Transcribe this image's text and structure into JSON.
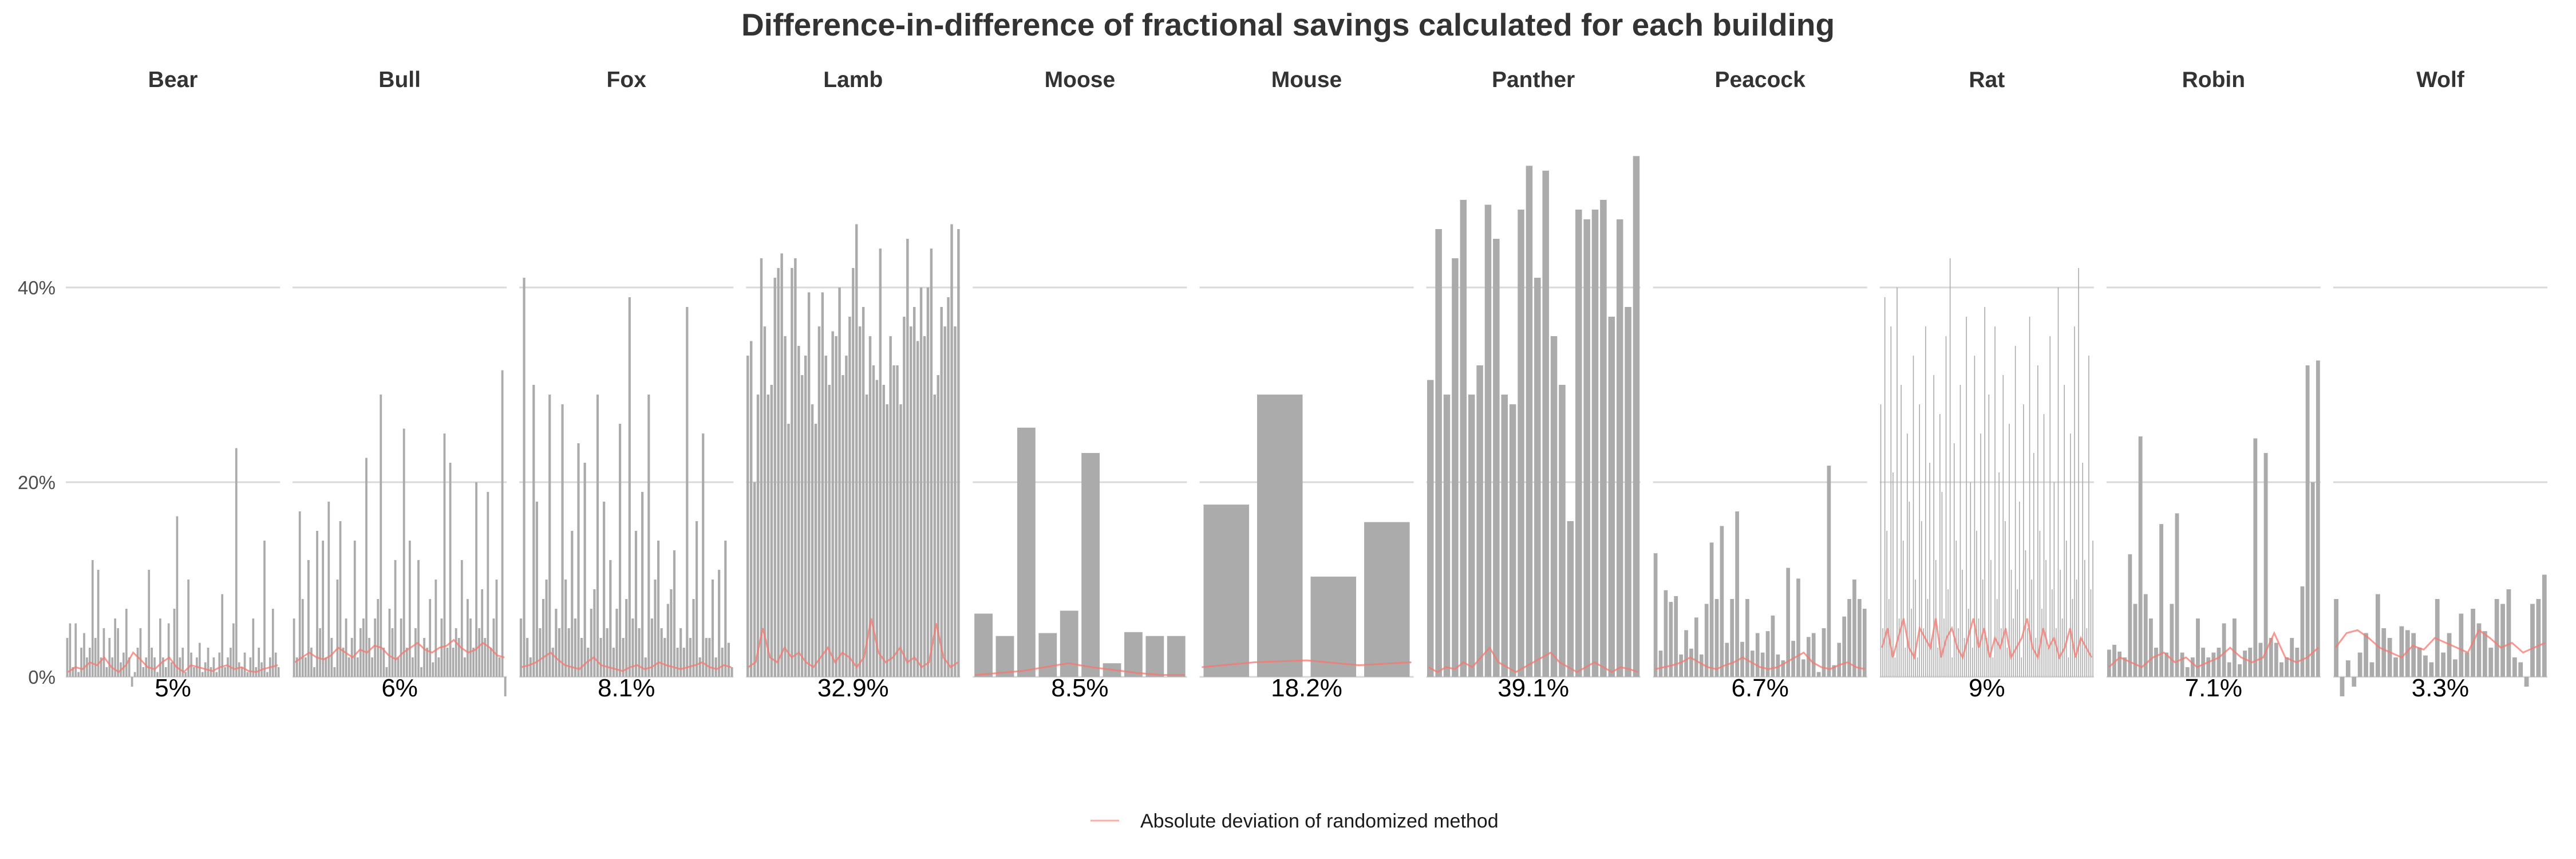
{
  "chart_data": {
    "type": "bar",
    "title": "Difference-in-difference of fractional savings calculated for each building",
    "ylim": [
      -0.02,
      0.55
    ],
    "y_ticks": [
      0,
      0.2,
      0.4
    ],
    "y_tick_labels": [
      "0%",
      "20%",
      "40%"
    ],
    "grid": "horizontal",
    "legend_position": "bottom",
    "bar_color": "#ABABAB",
    "line_color": "#F8766D",
    "series": [
      {
        "name": "",
        "kind": "bar"
      },
      {
        "name": "Absolute deviation of randomized method",
        "kind": "line"
      }
    ],
    "facets": [
      {
        "name": "Bear",
        "label": "5%",
        "bar_width": 0.75,
        "values": [
          0.04,
          0.055,
          0.01,
          0.055,
          0.005,
          0.03,
          0.045,
          0.02,
          0.03,
          0.12,
          0.04,
          0.11,
          0.02,
          0.05,
          0.01,
          0.04,
          0.02,
          0.06,
          0.05,
          0.015,
          0.025,
          0.07,
          0.02,
          -0.01,
          0.005,
          0.03,
          0.05,
          0.01,
          0.02,
          0.11,
          0.03,
          0.02,
          0.005,
          0.06,
          0.02,
          0.01,
          0.055,
          0.015,
          0.07,
          0.165,
          0.02,
          0.03,
          0.005,
          0.1,
          0.025,
          0.01,
          0.02,
          0.035,
          0.005,
          0.015,
          0.03,
          0.01,
          0.02,
          0.005,
          0.025,
          0.085,
          0.01,
          0.02,
          0.03,
          0.055,
          0.235,
          0.015,
          0.01,
          0.025,
          0.005,
          0.02,
          0.06,
          0.01,
          0.03,
          0.015,
          0.14,
          0.005,
          0.02,
          0.07,
          0.025,
          0.01
        ],
        "dev": [
          0.005,
          0.01,
          0.008,
          0.015,
          0.012,
          0.02,
          0.01,
          0.005,
          0.012,
          0.025,
          0.018,
          0.01,
          0.008,
          0.015,
          0.02,
          0.01,
          0.005,
          0.012,
          0.01,
          0.008,
          0.006,
          0.01,
          0.012,
          0.008,
          0.01,
          0.006,
          0.005,
          0.008,
          0.01,
          0.012
        ]
      },
      {
        "name": "Bull",
        "label": "6%",
        "bar_width": 0.75,
        "values": [
          0.06,
          0.02,
          0.17,
          0.08,
          0.02,
          0.12,
          0.03,
          0.01,
          0.15,
          0.05,
          0.14,
          0.02,
          0.18,
          0.04,
          0.01,
          0.1,
          0.16,
          0.03,
          0.06,
          0.02,
          0.04,
          0.14,
          0.02,
          0.05,
          0.06,
          0.225,
          0.04,
          0.02,
          0.06,
          0.08,
          0.29,
          0.03,
          0.01,
          0.07,
          0.05,
          0.12,
          0.02,
          0.06,
          0.255,
          0.03,
          0.14,
          0.02,
          0.05,
          0.12,
          0.01,
          0.04,
          0.03,
          0.08,
          0.015,
          0.1,
          0.02,
          0.06,
          0.25,
          0.03,
          0.22,
          0.03,
          0.05,
          0.04,
          0.12,
          0.02,
          0.08,
          0.06,
          0.03,
          0.2,
          0.05,
          0.09,
          0.04,
          0.19,
          0.03,
          0.06,
          0.1,
          0.02,
          0.315,
          -0.02
        ],
        "dev": [
          0.015,
          0.02,
          0.025,
          0.02,
          0.018,
          0.022,
          0.03,
          0.025,
          0.02,
          0.028,
          0.025,
          0.032,
          0.03,
          0.022,
          0.018,
          0.025,
          0.03,
          0.035,
          0.028,
          0.025,
          0.03,
          0.032,
          0.038,
          0.03,
          0.025,
          0.028,
          0.035,
          0.03,
          0.022,
          0.02
        ]
      },
      {
        "name": "Fox",
        "label": "8.1%",
        "bar_width": 0.75,
        "values": [
          0.06,
          0.41,
          0.04,
          0.02,
          0.3,
          0.18,
          0.05,
          0.08,
          0.1,
          0.29,
          0.03,
          0.07,
          0.05,
          0.28,
          0.1,
          0.05,
          0.15,
          0.06,
          0.24,
          0.04,
          0.22,
          0.03,
          0.07,
          0.09,
          0.29,
          0.04,
          0.18,
          0.05,
          0.12,
          0.03,
          0.07,
          0.26,
          0.04,
          0.08,
          0.39,
          0.06,
          0.15,
          0.05,
          0.19,
          0.02,
          0.29,
          0.06,
          0.1,
          0.14,
          0.05,
          0.04,
          0.075,
          0.09,
          0.13,
          0.03,
          0.05,
          0.03,
          0.38,
          0.04,
          0.08,
          0.16,
          0.02,
          0.25,
          0.04,
          0.04,
          0.1,
          0.02,
          0.11,
          0.03,
          0.14,
          0.035,
          0.01
        ],
        "dev": [
          0.01,
          0.012,
          0.015,
          0.02,
          0.025,
          0.018,
          0.012,
          0.01,
          0.008,
          0.015,
          0.02,
          0.012,
          0.01,
          0.008,
          0.006,
          0.01,
          0.012,
          0.008,
          0.01,
          0.015,
          0.012,
          0.01,
          0.008,
          0.01,
          0.012,
          0.015,
          0.01,
          0.008,
          0.012,
          0.01
        ]
      },
      {
        "name": "Lamb",
        "label": "32.9%",
        "bar_width": 0.75,
        "values": [
          0.33,
          0.345,
          0.2,
          0.29,
          0.43,
          0.36,
          0.29,
          0.3,
          0.41,
          0.42,
          0.435,
          0.35,
          0.26,
          0.42,
          0.43,
          0.34,
          0.31,
          0.33,
          0.395,
          0.28,
          0.26,
          0.36,
          0.395,
          0.33,
          0.3,
          0.355,
          0.35,
          0.4,
          0.31,
          0.33,
          0.37,
          0.42,
          0.465,
          0.36,
          0.38,
          0.29,
          0.35,
          0.32,
          0.305,
          0.44,
          0.3,
          0.28,
          0.35,
          0.32,
          0.32,
          0.28,
          0.37,
          0.45,
          0.36,
          0.38,
          0.345,
          0.4,
          0.35,
          0.4,
          0.44,
          0.29,
          0.31,
          0.38,
          0.36,
          0.39,
          0.465,
          0.36,
          0.46
        ],
        "dev": [
          0.01,
          0.015,
          0.05,
          0.02,
          0.015,
          0.03,
          0.02,
          0.025,
          0.015,
          0.01,
          0.02,
          0.03,
          0.015,
          0.025,
          0.02,
          0.01,
          0.02,
          0.06,
          0.025,
          0.015,
          0.02,
          0.03,
          0.015,
          0.02,
          0.01,
          0.015,
          0.055,
          0.02,
          0.01,
          0.015
        ]
      },
      {
        "name": "Moose",
        "label": "8.5%",
        "bar_width": 0.85,
        "values": [
          0.065,
          0.042,
          0.256,
          0.045,
          0.068,
          0.23,
          0.014,
          0.046,
          0.042,
          0.042
        ],
        "dev": [
          0.002,
          0.004,
          0.006,
          0.01,
          0.014,
          0.01,
          0.007,
          0.004,
          0.002,
          0.002
        ]
      },
      {
        "name": "Mouse",
        "label": "18.2%",
        "bar_width": 0.85,
        "values": [
          0.177,
          0.29,
          0.103,
          0.159
        ],
        "dev": [
          0.01,
          0.015,
          0.017,
          0.012,
          0.015
        ]
      },
      {
        "name": "Panther",
        "label": "39.1%",
        "bar_width": 0.8,
        "values": [
          0.305,
          0.46,
          0.29,
          0.43,
          0.49,
          0.29,
          0.32,
          0.485,
          0.45,
          0.29,
          0.28,
          0.48,
          0.525,
          0.41,
          0.52,
          0.35,
          0.3,
          0.16,
          0.48,
          0.47,
          0.48,
          0.49,
          0.37,
          0.47,
          0.38,
          0.535
        ],
        "dev": [
          0.01,
          0.005,
          0.01,
          0.008,
          0.015,
          0.01,
          0.02,
          0.03,
          0.015,
          0.01,
          0.005,
          0.01,
          0.015,
          0.02,
          0.025,
          0.015,
          0.01,
          0.005,
          0.01,
          0.015,
          0.01,
          0.005,
          0.01,
          0.008,
          0.005
        ]
      },
      {
        "name": "Peacock",
        "label": "6.7%",
        "bar_width": 0.75,
        "values": [
          0.127,
          0.027,
          0.089,
          0.077,
          0.083,
          0.023,
          0.048,
          0.029,
          0.061,
          0.023,
          0.075,
          0.138,
          0.08,
          0.155,
          0.035,
          0.08,
          0.17,
          0.036,
          0.08,
          0.027,
          0.045,
          0.025,
          0.047,
          0.063,
          0.023,
          0.017,
          0.112,
          0.037,
          0.101,
          0.018,
          0.041,
          0.045,
          0.005,
          0.05,
          0.217,
          0.012,
          0.035,
          0.062,
          0.08,
          0.1,
          0.08,
          0.07
        ],
        "dev": [
          0.008,
          0.01,
          0.012,
          0.015,
          0.02,
          0.015,
          0.01,
          0.008,
          0.012,
          0.015,
          0.02,
          0.015,
          0.01,
          0.008,
          0.01,
          0.015,
          0.02,
          0.025,
          0.015,
          0.01,
          0.008,
          0.012,
          0.015,
          0.01,
          0.008
        ]
      },
      {
        "name": "Rat",
        "label": "9%",
        "bar_width": 0.45,
        "values": [
          0.28,
          0.05,
          0.39,
          0.15,
          0.08,
          0.36,
          0.21,
          0.02,
          0.4,
          0.06,
          0.3,
          0.14,
          0.03,
          0.25,
          0.18,
          0.07,
          0.33,
          0.1,
          0.02,
          0.28,
          0.16,
          0.05,
          0.36,
          0.08,
          0.22,
          0.04,
          0.31,
          0.12,
          0.03,
          0.27,
          0.19,
          0.06,
          0.35,
          0.09,
          0.43,
          0.02,
          0.24,
          0.14,
          0.05,
          0.3,
          0.11,
          0.04,
          0.37,
          0.07,
          0.2,
          0.03,
          0.33,
          0.15,
          0.06,
          0.25,
          0.1,
          0.38,
          0.04,
          0.29,
          0.12,
          0.02,
          0.36,
          0.08,
          0.21,
          0.05,
          0.31,
          0.16,
          0.03,
          0.26,
          0.11,
          0.06,
          0.34,
          0.09,
          0.18,
          0.02,
          0.28,
          0.13,
          0.05,
          0.37,
          0.1,
          0.23,
          0.04,
          0.32,
          0.15,
          0.07,
          0.27,
          0.12,
          0.03,
          0.35,
          0.09,
          0.2,
          0.05,
          0.4,
          0.11,
          0.06,
          0.3,
          0.14,
          0.02,
          0.25,
          0.08,
          0.36,
          0.1,
          0.42,
          0.04,
          0.22,
          0.12,
          0.05,
          0.33,
          0.09,
          0.14
        ],
        "dev": [
          0.03,
          0.05,
          0.02,
          0.04,
          0.06,
          0.03,
          0.02,
          0.05,
          0.04,
          0.03,
          0.06,
          0.02,
          0.04,
          0.05,
          0.03,
          0.02,
          0.04,
          0.06,
          0.03,
          0.05,
          0.02,
          0.04,
          0.03,
          0.05,
          0.02,
          0.03,
          0.04,
          0.06,
          0.03,
          0.02,
          0.05,
          0.03,
          0.04,
          0.02,
          0.03,
          0.05,
          0.02,
          0.04,
          0.03,
          0.02
        ]
      },
      {
        "name": "Robin",
        "label": "7.1%",
        "bar_width": 0.75,
        "values": [
          0.028,
          0.033,
          0.026,
          0.02,
          0.126,
          0.075,
          0.247,
          0.085,
          0.06,
          0.03,
          0.157,
          0.025,
          0.075,
          0.168,
          0.025,
          0.01,
          0.02,
          0.06,
          0.03,
          0.02,
          0.025,
          0.03,
          0.055,
          0.015,
          0.06,
          0.013,
          0.027,
          0.03,
          0.245,
          0.035,
          0.23,
          0.04,
          0.035,
          0.015,
          0.02,
          0.04,
          0.03,
          0.093,
          0.32,
          0.2,
          0.325
        ],
        "dev": [
          0.01,
          0.02,
          0.015,
          0.01,
          0.02,
          0.025,
          0.015,
          0.02,
          0.01,
          0.015,
          0.02,
          0.03,
          0.02,
          0.015,
          0.02,
          0.045,
          0.02,
          0.015,
          0.02,
          0.03
        ]
      },
      {
        "name": "Wolf",
        "label": "3.3%",
        "bar_width": 0.75,
        "values": [
          0.08,
          -0.02,
          0.017,
          -0.01,
          0.025,
          0.045,
          0.015,
          0.085,
          0.05,
          0.04,
          0.02,
          0.052,
          0.048,
          0.045,
          0.03,
          0.022,
          0.015,
          0.08,
          0.025,
          0.045,
          0.018,
          0.065,
          0.025,
          0.07,
          0.055,
          0.047,
          0.03,
          0.08,
          0.075,
          0.09,
          0.02,
          0.015,
          -0.01,
          0.075,
          0.08,
          0.105
        ],
        "dev": [
          0.03,
          0.045,
          0.048,
          0.04,
          0.03,
          0.025,
          0.02,
          0.032,
          0.028,
          0.04,
          0.035,
          0.03,
          0.025,
          0.048,
          0.04,
          0.03,
          0.035,
          0.025,
          0.03,
          0.035
        ]
      }
    ]
  }
}
